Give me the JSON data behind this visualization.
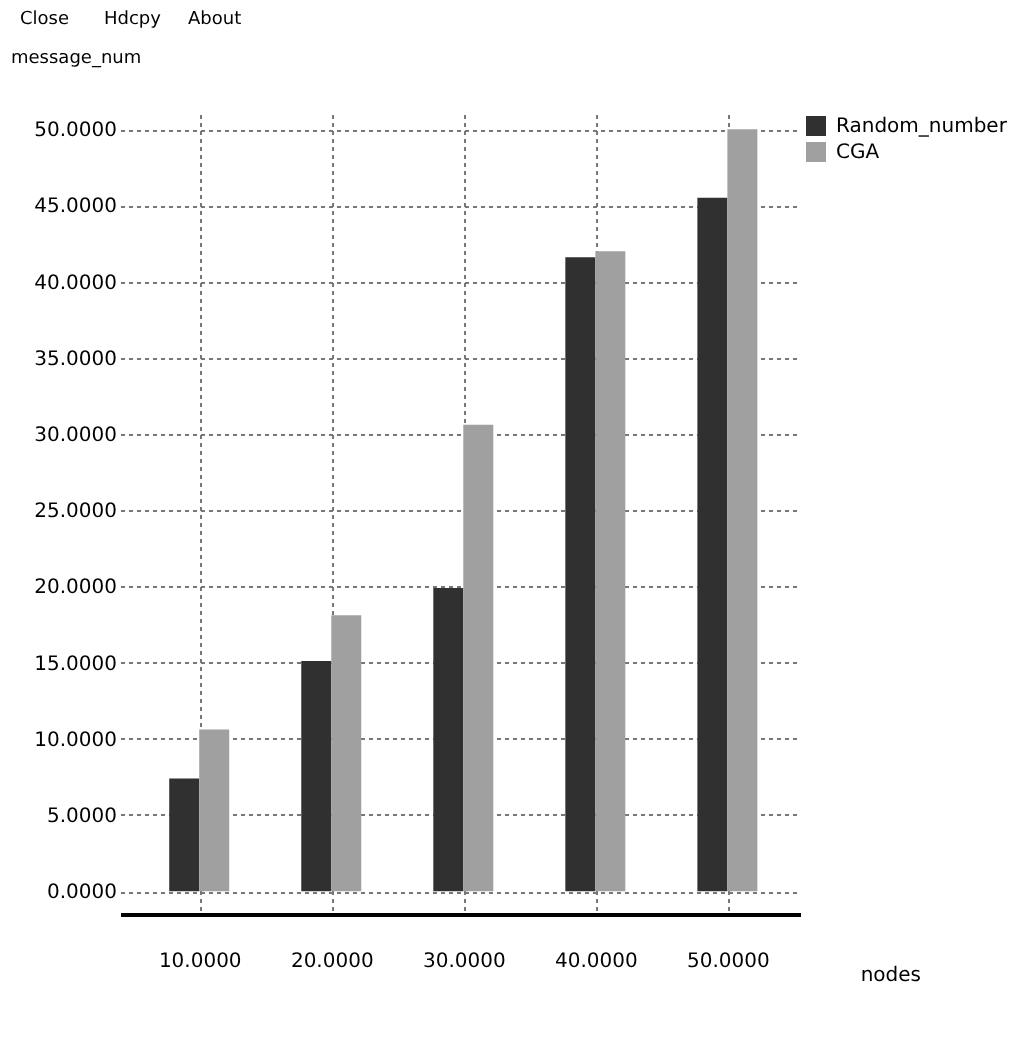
{
  "chart_data": {
    "type": "bar",
    "xlabel": "nodes",
    "ylabel": "message_num",
    "x": [
      10,
      20,
      30,
      40,
      50
    ],
    "series": [
      {
        "name": "Random_number",
        "color": "#303030",
        "values": [
          7.4,
          15.1,
          19.9,
          41.6,
          45.5
        ]
      },
      {
        "name": "CGA",
        "color": "#a0a0a0",
        "values": [
          10.6,
          18.1,
          30.6,
          42.0,
          50.0
        ]
      }
    ],
    "xlim": [
      4,
      55.5
    ],
    "xticks": [
      {
        "value": 10,
        "label": "10.0000"
      },
      {
        "value": 20,
        "label": "20.0000"
      },
      {
        "value": 30,
        "label": "30.0000"
      },
      {
        "value": 40,
        "label": "40.0000"
      },
      {
        "value": 50,
        "label": "50.0000"
      }
    ],
    "ylim": [
      -1.5,
      51
    ],
    "yticks": [
      {
        "value": 0,
        "label": "0.0000"
      },
      {
        "value": 5,
        "label": "5.0000"
      },
      {
        "value": 10,
        "label": "10.0000"
      },
      {
        "value": 15,
        "label": "15.0000"
      },
      {
        "value": 20,
        "label": "20.0000"
      },
      {
        "value": 25,
        "label": "25.0000"
      },
      {
        "value": 30,
        "label": "30.0000"
      },
      {
        "value": 35,
        "label": "35.0000"
      },
      {
        "value": 40,
        "label": "40.0000"
      },
      {
        "value": 45,
        "label": "45.0000"
      },
      {
        "value": 50,
        "label": "50.0000"
      }
    ],
    "grid": true,
    "legend": "top right",
    "annotations": [
      "Close",
      "Hdcpy",
      "About"
    ]
  }
}
